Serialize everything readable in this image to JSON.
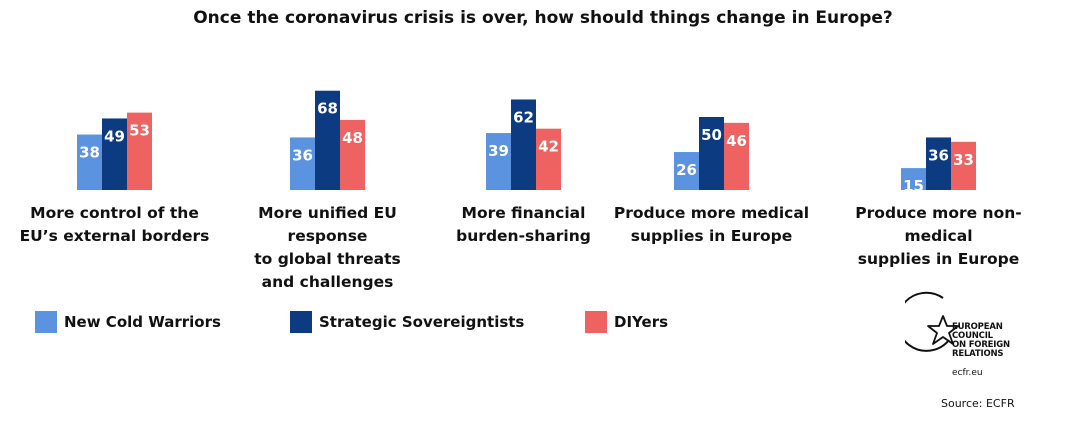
{
  "chart_data": {
    "type": "bar",
    "title": "Once the coronavirus crisis is over, how should things change in Europe?",
    "categories": [
      "More control of the\nEU’s external borders",
      "More unified EU response\nto global threats\nand challenges",
      "More financial\nburden-sharing",
      "Produce more medical\nsupplies in Europe",
      "Produce more non-medical\nsupplies in Europe"
    ],
    "series": [
      {
        "name": "New Cold Warriors",
        "color": "#5b93e0",
        "values": [
          38,
          36,
          39,
          26,
          15
        ]
      },
      {
        "name": "Strategic Sovereigntists",
        "color": "#0c3b82",
        "values": [
          49,
          68,
          62,
          50,
          36
        ]
      },
      {
        "name": "DIYers",
        "color": "#ef6262",
        "values": [
          53,
          48,
          42,
          46,
          33
        ]
      }
    ],
    "xlabel": "",
    "ylabel": "",
    "ylim": [
      0,
      68
    ],
    "grid": false,
    "legend_position": "bottom-left"
  },
  "logo": {
    "text": "EUROPEAN\nCOUNCIL\nON FOREIGN\nRELATIONS",
    "url": "ecfr.eu"
  },
  "source": "Source: ECFR"
}
